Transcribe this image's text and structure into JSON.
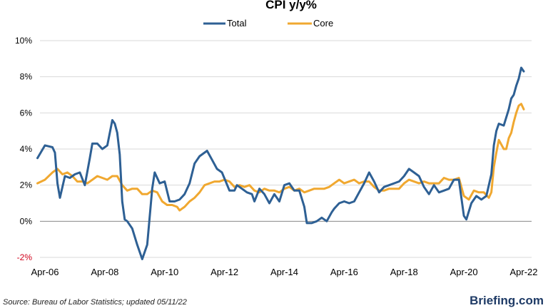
{
  "chart_data": {
    "type": "line",
    "title": "CPI y/y%",
    "source": "Source: Bureau of Labor Statistics; updated 05/11/22",
    "brand": "Briefing.com",
    "x_ticks": [
      "Apr-06",
      "Apr-08",
      "Apr-10",
      "Apr-12",
      "Apr-14",
      "Apr-16",
      "Apr-18",
      "Apr-20",
      "Apr-22"
    ],
    "y_ticks": [
      "10%",
      "8%",
      "6%",
      "4%",
      "2%",
      "0%",
      "-2%"
    ],
    "ylim": [
      -2,
      10
    ],
    "xlim": [
      "2006-04",
      "2022-04"
    ],
    "grid": "horizontal",
    "legend_position": "top",
    "series": [
      {
        "name": "Total",
        "color": "#2e6094",
        "points": [
          [
            "2006-01",
            3.5
          ],
          [
            "2006-04",
            4.2
          ],
          [
            "2006-07",
            4.1
          ],
          [
            "2006-08",
            3.8
          ],
          [
            "2006-09",
            2.1
          ],
          [
            "2006-10",
            1.3
          ],
          [
            "2006-12",
            2.5
          ],
          [
            "2007-02",
            2.4
          ],
          [
            "2007-04",
            2.6
          ],
          [
            "2007-06",
            2.7
          ],
          [
            "2007-08",
            2.0
          ],
          [
            "2007-10",
            3.5
          ],
          [
            "2007-11",
            4.3
          ],
          [
            "2008-01",
            4.3
          ],
          [
            "2008-03",
            4.0
          ],
          [
            "2008-05",
            4.2
          ],
          [
            "2008-07",
            5.6
          ],
          [
            "2008-08",
            5.4
          ],
          [
            "2008-09",
            4.9
          ],
          [
            "2008-10",
            3.7
          ],
          [
            "2008-11",
            1.1
          ],
          [
            "2008-12",
            0.1
          ],
          [
            "2009-01",
            0.0
          ],
          [
            "2009-03",
            -0.4
          ],
          [
            "2009-05",
            -1.3
          ],
          [
            "2009-07",
            -2.1
          ],
          [
            "2009-09",
            -1.3
          ],
          [
            "2009-11",
            1.8
          ],
          [
            "2009-12",
            2.7
          ],
          [
            "2010-02",
            2.1
          ],
          [
            "2010-04",
            2.2
          ],
          [
            "2010-06",
            1.1
          ],
          [
            "2010-08",
            1.1
          ],
          [
            "2010-10",
            1.2
          ],
          [
            "2010-12",
            1.5
          ],
          [
            "2011-02",
            2.1
          ],
          [
            "2011-04",
            3.2
          ],
          [
            "2011-06",
            3.6
          ],
          [
            "2011-09",
            3.9
          ],
          [
            "2011-11",
            3.4
          ],
          [
            "2012-01",
            2.9
          ],
          [
            "2012-03",
            2.7
          ],
          [
            "2012-06",
            1.7
          ],
          [
            "2012-08",
            1.7
          ],
          [
            "2012-09",
            2.0
          ],
          [
            "2012-11",
            1.8
          ],
          [
            "2013-01",
            1.6
          ],
          [
            "2013-03",
            1.5
          ],
          [
            "2013-04",
            1.1
          ],
          [
            "2013-06",
            1.8
          ],
          [
            "2013-08",
            1.5
          ],
          [
            "2013-10",
            1.0
          ],
          [
            "2013-12",
            1.5
          ],
          [
            "2014-02",
            1.1
          ],
          [
            "2014-04",
            2.0
          ],
          [
            "2014-06",
            2.1
          ],
          [
            "2014-08",
            1.7
          ],
          [
            "2014-10",
            1.7
          ],
          [
            "2014-12",
            0.8
          ],
          [
            "2015-01",
            -0.1
          ],
          [
            "2015-03",
            -0.1
          ],
          [
            "2015-05",
            0.0
          ],
          [
            "2015-07",
            0.2
          ],
          [
            "2015-09",
            0.0
          ],
          [
            "2015-11",
            0.5
          ],
          [
            "2015-12",
            0.7
          ],
          [
            "2016-02",
            1.0
          ],
          [
            "2016-04",
            1.1
          ],
          [
            "2016-06",
            1.0
          ],
          [
            "2016-08",
            1.1
          ],
          [
            "2016-10",
            1.6
          ],
          [
            "2016-12",
            2.1
          ],
          [
            "2017-02",
            2.7
          ],
          [
            "2017-04",
            2.2
          ],
          [
            "2017-06",
            1.6
          ],
          [
            "2017-08",
            1.9
          ],
          [
            "2017-10",
            2.0
          ],
          [
            "2017-12",
            2.1
          ],
          [
            "2018-02",
            2.2
          ],
          [
            "2018-04",
            2.5
          ],
          [
            "2018-06",
            2.9
          ],
          [
            "2018-08",
            2.7
          ],
          [
            "2018-10",
            2.5
          ],
          [
            "2018-12",
            1.9
          ],
          [
            "2019-02",
            1.5
          ],
          [
            "2019-04",
            2.0
          ],
          [
            "2019-06",
            1.6
          ],
          [
            "2019-08",
            1.7
          ],
          [
            "2019-10",
            1.8
          ],
          [
            "2019-12",
            2.3
          ],
          [
            "2020-02",
            2.3
          ],
          [
            "2020-04",
            0.3
          ],
          [
            "2020-05",
            0.1
          ],
          [
            "2020-07",
            1.0
          ],
          [
            "2020-09",
            1.4
          ],
          [
            "2020-11",
            1.2
          ],
          [
            "2021-01",
            1.4
          ],
          [
            "2021-03",
            2.6
          ],
          [
            "2021-04",
            4.2
          ],
          [
            "2021-05",
            5.0
          ],
          [
            "2021-06",
            5.4
          ],
          [
            "2021-08",
            5.3
          ],
          [
            "2021-10",
            6.2
          ],
          [
            "2021-11",
            6.8
          ],
          [
            "2021-12",
            7.0
          ],
          [
            "2022-01",
            7.5
          ],
          [
            "2022-02",
            7.9
          ],
          [
            "2022-03",
            8.5
          ],
          [
            "2022-04",
            8.3
          ]
        ]
      },
      {
        "name": "Core",
        "color": "#f0a830",
        "points": [
          [
            "2006-01",
            2.1
          ],
          [
            "2006-04",
            2.3
          ],
          [
            "2006-07",
            2.7
          ],
          [
            "2006-09",
            2.9
          ],
          [
            "2006-11",
            2.6
          ],
          [
            "2007-01",
            2.7
          ],
          [
            "2007-03",
            2.5
          ],
          [
            "2007-05",
            2.2
          ],
          [
            "2007-07",
            2.2
          ],
          [
            "2007-09",
            2.1
          ],
          [
            "2007-11",
            2.3
          ],
          [
            "2008-01",
            2.5
          ],
          [
            "2008-03",
            2.4
          ],
          [
            "2008-05",
            2.3
          ],
          [
            "2008-07",
            2.5
          ],
          [
            "2008-09",
            2.5
          ],
          [
            "2008-11",
            2.0
          ],
          [
            "2009-01",
            1.7
          ],
          [
            "2009-03",
            1.8
          ],
          [
            "2009-05",
            1.8
          ],
          [
            "2009-07",
            1.5
          ],
          [
            "2009-09",
            1.5
          ],
          [
            "2009-11",
            1.7
          ],
          [
            "2010-01",
            1.6
          ],
          [
            "2010-03",
            1.1
          ],
          [
            "2010-05",
            0.9
          ],
          [
            "2010-07",
            0.9
          ],
          [
            "2010-09",
            0.8
          ],
          [
            "2010-10",
            0.6
          ],
          [
            "2010-12",
            0.8
          ],
          [
            "2011-02",
            1.1
          ],
          [
            "2011-04",
            1.3
          ],
          [
            "2011-06",
            1.6
          ],
          [
            "2011-08",
            2.0
          ],
          [
            "2011-10",
            2.1
          ],
          [
            "2011-12",
            2.2
          ],
          [
            "2012-02",
            2.2
          ],
          [
            "2012-04",
            2.3
          ],
          [
            "2012-06",
            2.2
          ],
          [
            "2012-08",
            1.9
          ],
          [
            "2012-10",
            2.0
          ],
          [
            "2012-12",
            1.9
          ],
          [
            "2013-02",
            2.0
          ],
          [
            "2013-04",
            1.7
          ],
          [
            "2013-06",
            1.6
          ],
          [
            "2013-08",
            1.8
          ],
          [
            "2013-10",
            1.7
          ],
          [
            "2013-12",
            1.7
          ],
          [
            "2014-02",
            1.6
          ],
          [
            "2014-04",
            1.8
          ],
          [
            "2014-06",
            1.9
          ],
          [
            "2014-08",
            1.7
          ],
          [
            "2014-10",
            1.8
          ],
          [
            "2014-12",
            1.6
          ],
          [
            "2015-02",
            1.7
          ],
          [
            "2015-04",
            1.8
          ],
          [
            "2015-06",
            1.8
          ],
          [
            "2015-08",
            1.8
          ],
          [
            "2015-10",
            1.9
          ],
          [
            "2015-12",
            2.1
          ],
          [
            "2016-02",
            2.3
          ],
          [
            "2016-04",
            2.1
          ],
          [
            "2016-06",
            2.2
          ],
          [
            "2016-08",
            2.3
          ],
          [
            "2016-10",
            2.1
          ],
          [
            "2016-12",
            2.2
          ],
          [
            "2017-02",
            2.2
          ],
          [
            "2017-04",
            1.9
          ],
          [
            "2017-06",
            1.7
          ],
          [
            "2017-08",
            1.7
          ],
          [
            "2017-10",
            1.8
          ],
          [
            "2017-12",
            1.8
          ],
          [
            "2018-02",
            1.8
          ],
          [
            "2018-04",
            2.1
          ],
          [
            "2018-06",
            2.3
          ],
          [
            "2018-08",
            2.2
          ],
          [
            "2018-10",
            2.1
          ],
          [
            "2018-12",
            2.2
          ],
          [
            "2019-02",
            2.1
          ],
          [
            "2019-04",
            2.1
          ],
          [
            "2019-06",
            2.1
          ],
          [
            "2019-08",
            2.4
          ],
          [
            "2019-10",
            2.3
          ],
          [
            "2019-12",
            2.3
          ],
          [
            "2020-02",
            2.4
          ],
          [
            "2020-04",
            1.4
          ],
          [
            "2020-06",
            1.2
          ],
          [
            "2020-08",
            1.7
          ],
          [
            "2020-10",
            1.6
          ],
          [
            "2020-12",
            1.6
          ],
          [
            "2021-02",
            1.3
          ],
          [
            "2021-03",
            1.6
          ],
          [
            "2021-04",
            3.0
          ],
          [
            "2021-05",
            3.8
          ],
          [
            "2021-06",
            4.5
          ],
          [
            "2021-08",
            4.0
          ],
          [
            "2021-09",
            4.0
          ],
          [
            "2021-10",
            4.6
          ],
          [
            "2021-11",
            4.9
          ],
          [
            "2021-12",
            5.5
          ],
          [
            "2022-01",
            6.0
          ],
          [
            "2022-02",
            6.4
          ],
          [
            "2022-03",
            6.5
          ],
          [
            "2022-04",
            6.2
          ]
        ]
      }
    ]
  }
}
